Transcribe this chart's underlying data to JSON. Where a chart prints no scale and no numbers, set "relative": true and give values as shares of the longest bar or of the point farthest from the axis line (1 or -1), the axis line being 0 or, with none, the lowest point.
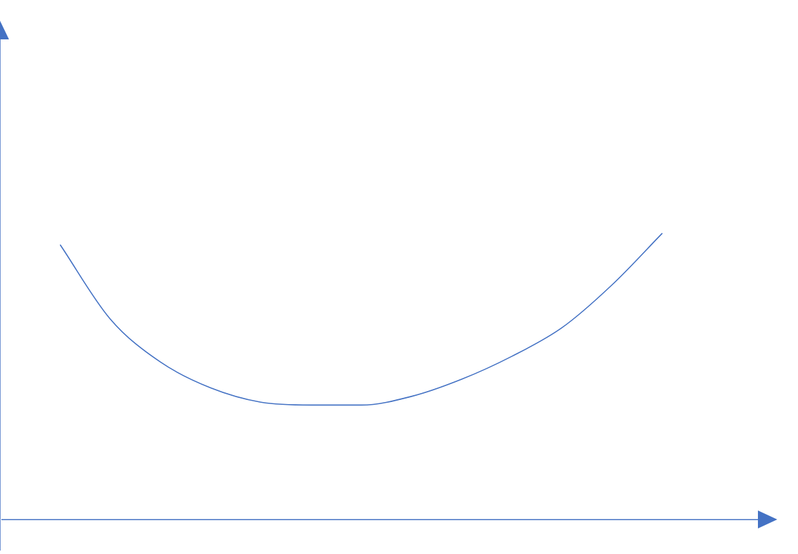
{
  "chart_data": {
    "type": "line",
    "relative": true,
    "marker": "none",
    "categories": [
      null,
      null,
      null,
      null,
      null,
      null,
      null,
      null,
      null,
      null,
      null,
      null,
      null
    ],
    "series": [
      {
        "color": "#4472c4",
        "values": [
          0.96,
          0.7,
          0.55,
          0.46,
          0.41,
          0.4,
          0.4,
          0.43,
          0.49,
          0.57,
          0.67,
          0.82,
          1
        ]
      }
    ]
  }
}
